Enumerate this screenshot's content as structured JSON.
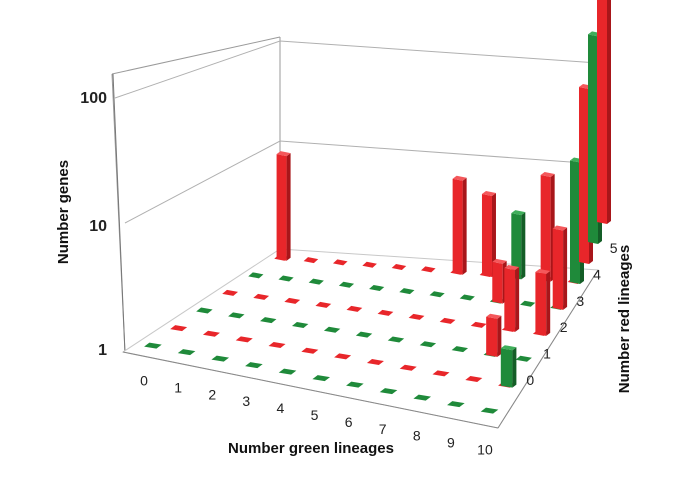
{
  "chart_data": {
    "type": "bar3d",
    "z_scale": "log",
    "z_ticks": [
      "1",
      "10",
      "100"
    ],
    "z_label": "Number genes",
    "x_label": "Number green lineages",
    "y_label": "Number red lineages",
    "x_ticks": [
      "0",
      "1",
      "2",
      "3",
      "4",
      "5",
      "6",
      "7",
      "8",
      "9",
      "10"
    ],
    "y_ticks": [
      "0",
      "1",
      "2",
      "3",
      "4",
      "5"
    ],
    "colors": {
      "green": "#1f8a3a",
      "red": "#e8262a"
    },
    "bars": [
      {
        "x": 0,
        "y": 5,
        "color": "red",
        "value": 6
      },
      {
        "x": 6,
        "y": 5,
        "color": "red",
        "value": 5
      },
      {
        "x": 7,
        "y": 5,
        "color": "red",
        "value": 4
      },
      {
        "x": 8,
        "y": 5,
        "color": "green",
        "value": 3
      },
      {
        "x": 8,
        "y": 4,
        "color": "red",
        "value": 2
      },
      {
        "x": 9,
        "y": 5,
        "color": "red",
        "value": 6
      },
      {
        "x": 9,
        "y": 3,
        "color": "red",
        "value": 3
      },
      {
        "x": 9,
        "y": 2,
        "color": "red",
        "value": 2
      },
      {
        "x": 10,
        "y": 5,
        "color": "green",
        "value": 8
      },
      {
        "x": 10,
        "y": 4,
        "color": "red",
        "value": 4
      },
      {
        "x": 10,
        "y": 3,
        "color": "red",
        "value": 3
      },
      {
        "x": 10,
        "y": 1,
        "color": "green",
        "value": 2
      },
      {
        "x": 10,
        "y": 5,
        "color": "red",
        "value": 20
      },
      {
        "x": 10,
        "y": 5,
        "color": "green",
        "value": 35
      },
      {
        "x": 10,
        "y": 5,
        "color": "red",
        "value": 150
      }
    ]
  }
}
